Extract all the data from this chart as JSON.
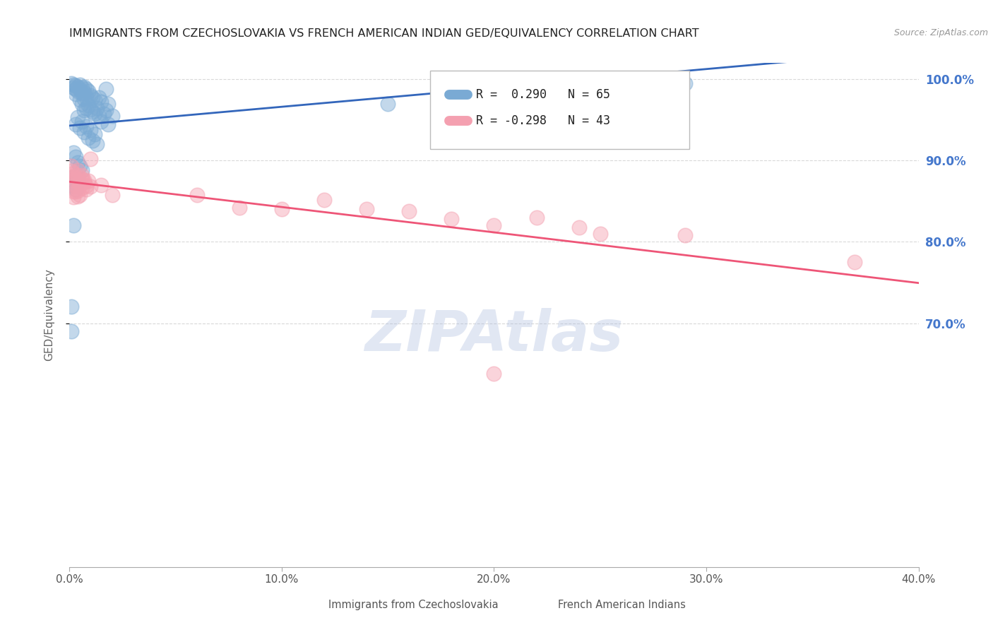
{
  "title": "IMMIGRANTS FROM CZECHOSLOVAKIA VS FRENCH AMERICAN INDIAN GED/EQUIVALENCY CORRELATION CHART",
  "source": "Source: ZipAtlas.com",
  "ylabel": "GED/Equivalency",
  "watermark": "ZIPAtlas",
  "legend_blue_r": "0.290",
  "legend_blue_n": "65",
  "legend_pink_r": "-0.298",
  "legend_pink_n": "43",
  "legend_label_blue": "Immigrants from Czechoslovakia",
  "legend_label_pink": "French American Indians",
  "xmin": 0.0,
  "xmax": 0.4,
  "ymin": 0.4,
  "ymax": 1.02,
  "yticks": [
    0.7,
    0.8,
    0.9,
    1.0
  ],
  "xticks": [
    0.0,
    0.1,
    0.2,
    0.3,
    0.4
  ],
  "grid_color": "#d0d0d0",
  "blue_color": "#7aaad4",
  "pink_color": "#f4a0b0",
  "blue_line_color": "#3366bb",
  "pink_line_color": "#ee5577",
  "right_axis_color": "#4477cc",
  "blue_points_x": [
    0.001,
    0.002,
    0.002,
    0.003,
    0.003,
    0.003,
    0.004,
    0.004,
    0.005,
    0.005,
    0.005,
    0.006,
    0.006,
    0.006,
    0.007,
    0.007,
    0.007,
    0.007,
    0.008,
    0.008,
    0.008,
    0.009,
    0.009,
    0.01,
    0.01,
    0.011,
    0.011,
    0.012,
    0.012,
    0.013,
    0.014,
    0.014,
    0.015,
    0.015,
    0.016,
    0.017,
    0.018,
    0.018,
    0.02,
    0.003,
    0.004,
    0.005,
    0.006,
    0.007,
    0.008,
    0.009,
    0.01,
    0.011,
    0.012,
    0.013,
    0.001,
    0.002,
    0.003,
    0.004,
    0.002,
    0.003,
    0.004,
    0.005,
    0.006,
    0.001,
    0.001,
    0.002,
    0.017,
    0.15,
    0.29
  ],
  "blue_points_y": [
    0.995,
    0.993,
    0.99,
    0.992,
    0.988,
    0.982,
    0.991,
    0.985,
    0.993,
    0.987,
    0.975,
    0.99,
    0.983,
    0.97,
    0.991,
    0.984,
    0.976,
    0.962,
    0.988,
    0.978,
    0.965,
    0.985,
    0.968,
    0.98,
    0.963,
    0.978,
    0.96,
    0.975,
    0.958,
    0.965,
    0.978,
    0.955,
    0.972,
    0.948,
    0.958,
    0.962,
    0.97,
    0.945,
    0.955,
    0.945,
    0.953,
    0.94,
    0.948,
    0.935,
    0.942,
    0.928,
    0.938,
    0.925,
    0.932,
    0.92,
    0.87,
    0.88,
    0.865,
    0.875,
    0.91,
    0.905,
    0.898,
    0.893,
    0.888,
    0.72,
    0.69,
    0.82,
    0.988,
    0.97,
    0.995
  ],
  "pink_points_x": [
    0.001,
    0.002,
    0.003,
    0.004,
    0.005,
    0.006,
    0.007,
    0.008,
    0.009,
    0.01,
    0.001,
    0.002,
    0.003,
    0.004,
    0.005,
    0.006,
    0.007,
    0.008,
    0.002,
    0.003,
    0.004,
    0.005,
    0.006,
    0.002,
    0.003,
    0.004,
    0.06,
    0.08,
    0.1,
    0.12,
    0.14,
    0.16,
    0.18,
    0.2,
    0.22,
    0.24,
    0.25,
    0.29,
    0.37,
    0.01,
    0.015,
    0.02,
    0.2
  ],
  "pink_points_y": [
    0.887,
    0.88,
    0.875,
    0.882,
    0.87,
    0.878,
    0.873,
    0.865,
    0.875,
    0.868,
    0.893,
    0.885,
    0.878,
    0.888,
    0.873,
    0.882,
    0.876,
    0.869,
    0.862,
    0.87,
    0.863,
    0.858,
    0.866,
    0.855,
    0.862,
    0.856,
    0.858,
    0.842,
    0.84,
    0.852,
    0.84,
    0.838,
    0.828,
    0.82,
    0.83,
    0.818,
    0.81,
    0.808,
    0.775,
    0.902,
    0.87,
    0.858,
    0.638
  ]
}
